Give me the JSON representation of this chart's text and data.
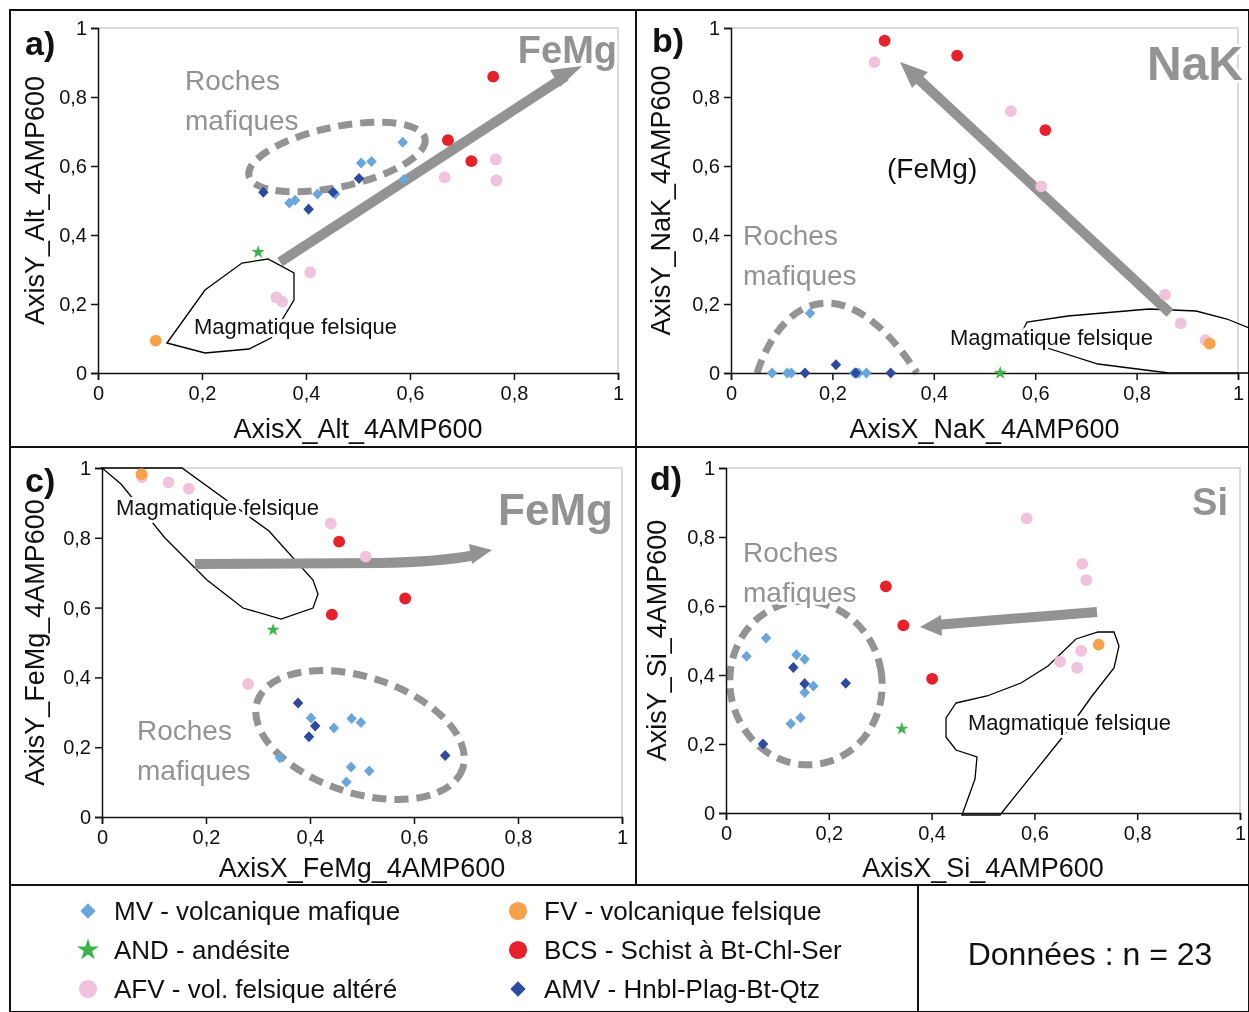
{
  "chart_data": [
    {
      "type": "scatter",
      "xlabel": "AxisX_Alt_4AMP600",
      "ylabel": "AxisY_Alt_4AMP600",
      "xlim": [
        0,
        1
      ],
      "ylim": [
        0,
        1
      ],
      "xticks": [
        {
          "value": 0,
          "label": "0"
        },
        {
          "value": 0.2,
          "label": "0,2"
        },
        {
          "value": 0.4,
          "label": "0,4"
        },
        {
          "value": 0.6,
          "label": "0,6"
        },
        {
          "value": 0.8,
          "label": "0,8"
        },
        {
          "value": 1,
          "label": "1"
        }
      ],
      "yticks": [
        {
          "value": 0,
          "label": "0"
        },
        {
          "value": 0.2,
          "label": "0,2"
        },
        {
          "value": 0.4,
          "label": "0,4"
        },
        {
          "value": 0.6,
          "label": "0,6"
        },
        {
          "value": 0.8,
          "label": "0,8"
        },
        {
          "value": 1,
          "label": "1"
        }
      ],
      "legend": "bottom",
      "annotations": [
        "a)",
        "FeMg",
        "Roches mafiques",
        "Magmatique felsique"
      ],
      "series": [
        {
          "name": "MV - volcanique mafique",
          "color": "#6aa6dc",
          "marker": "diamond",
          "x": [
            0.586,
            0.506,
            0.526,
            0.588,
            0.422,
            0.368,
            0.379,
            0.456
          ],
          "values": [
            0.669,
            0.609,
            0.613,
            0.561,
            0.519,
            0.493,
            0.501,
            0.519
          ]
        },
        {
          "name": "AND - andésite",
          "color": "#3cb44b",
          "marker": "star",
          "x": [
            0.308
          ],
          "values": [
            0.35
          ]
        },
        {
          "name": "AFV - vol. felsique altéré",
          "color": "#f0c2dc",
          "marker": "circle",
          "x": [
            0.765,
            0.766,
            0.667,
            0.408,
            0.343,
            0.354
          ],
          "values": [
            0.619,
            0.558,
            0.567,
            0.292,
            0.219,
            0.207
          ]
        },
        {
          "name": "FV - volcanique felsique",
          "color": "#f7a14a",
          "marker": "circle",
          "x": [
            0.111
          ],
          "values": [
            0.094
          ]
        },
        {
          "name": "BCS - Schist à Bt-Chl-Ser",
          "color": "#e8202a",
          "marker": "circle",
          "x": [
            0.76,
            0.673,
            0.718
          ],
          "values": [
            0.859,
            0.675,
            0.614
          ]
        },
        {
          "name": "AMV - Hnbl-Plag-Bt-Qtz",
          "color": "#2e4aa0",
          "marker": "diamond",
          "x": [
            0.318,
            0.405,
            0.452,
            0.502
          ],
          "values": [
            0.524,
            0.475,
            0.524,
            0.564
          ]
        }
      ]
    },
    {
      "type": "scatter",
      "xlabel": "AxisX_NaK_4AMP600",
      "ylabel": "AxisY_NaK_4AMP600",
      "xlim": [
        0,
        1
      ],
      "ylim": [
        0,
        1
      ],
      "xticks": [
        {
          "value": 0,
          "label": "0"
        },
        {
          "value": 0.2,
          "label": "0,2"
        },
        {
          "value": 0.4,
          "label": "0,4"
        },
        {
          "value": 0.6,
          "label": "0,6"
        },
        {
          "value": 0.8,
          "label": "0,8"
        },
        {
          "value": 1,
          "label": "1"
        }
      ],
      "yticks": [
        {
          "value": 0,
          "label": "0"
        },
        {
          "value": 0.2,
          "label": "0,2"
        },
        {
          "value": 0.4,
          "label": "0,4"
        },
        {
          "value": 0.6,
          "label": "0,6"
        },
        {
          "value": 0.8,
          "label": "0,8"
        },
        {
          "value": 1,
          "label": "1"
        }
      ],
      "annotations": [
        "b)",
        "NaK",
        "(FeMg)",
        "Roches mafiques",
        "Magmatique felsique"
      ],
      "series": [
        {
          "color": "#6aa6dc",
          "marker": "diamond",
          "x": [
            0.156,
            0.081,
            0.111,
            0.119,
            0.243,
            0.248,
            0.252,
            0.267
          ],
          "values": [
            0.173,
            0,
            0,
            0,
            0,
            0,
            0,
            0
          ]
        },
        {
          "color": "#3cb44b",
          "marker": "star",
          "x": [
            0.531
          ],
          "values": [
            0
          ]
        },
        {
          "color": "#f0c2dc",
          "marker": "circle",
          "x": [
            0.283,
            0.552,
            0.612,
            0.856,
            0.887,
            0.936
          ],
          "values": [
            0.901,
            0.759,
            0.541,
            0.227,
            0.144,
            0.095
          ]
        },
        {
          "color": "#f7a14a",
          "marker": "circle",
          "x": [
            0.944
          ],
          "values": [
            0.085
          ]
        },
        {
          "color": "#e8202a",
          "marker": "circle",
          "x": [
            0.303,
            0.446,
            0.62
          ],
          "values": [
            0.963,
            0.92,
            0.704
          ]
        },
        {
          "color": "#2e4aa0",
          "marker": "diamond",
          "x": [
            0.146,
            0.207,
            0.246,
            0.315
          ],
          "values": [
            0,
            0.024,
            0,
            0
          ]
        }
      ]
    },
    {
      "type": "scatter",
      "xlabel": "AxisX_FeMg_4AMP600",
      "ylabel": "AxisY_FeMg_4AMP600",
      "xlim": [
        0,
        1
      ],
      "ylim": [
        0,
        1
      ],
      "xticks": [
        {
          "value": 0,
          "label": "0"
        },
        {
          "value": 0.2,
          "label": "0,2"
        },
        {
          "value": 0.4,
          "label": "0,4"
        },
        {
          "value": 0.6,
          "label": "0,6"
        },
        {
          "value": 0.8,
          "label": "0,8"
        },
        {
          "value": 1,
          "label": "1"
        }
      ],
      "yticks": [
        {
          "value": 0,
          "label": "0"
        },
        {
          "value": 0.2,
          "label": "0,2"
        },
        {
          "value": 0.4,
          "label": "0,4"
        },
        {
          "value": 0.6,
          "label": "0,6"
        },
        {
          "value": 0.8,
          "label": "0,8"
        },
        {
          "value": 1,
          "label": "1"
        }
      ],
      "annotations": [
        "c)",
        "FeMg",
        "Magmatique felsique",
        "Roches mafiques"
      ],
      "series": [
        {
          "color": "#6aa6dc",
          "marker": "diamond",
          "x": [
            0.402,
            0.446,
            0.48,
            0.498,
            0.342,
            0.479,
            0.514,
            0.47
          ],
          "values": [
            0.284,
            0.255,
            0.282,
            0.271,
            0.17,
            0.143,
            0.132,
            0.1
          ]
        },
        {
          "color": "#3cb44b",
          "marker": "star",
          "x": [
            0.329
          ],
          "values": [
            0.536
          ]
        },
        {
          "color": "#f0c2dc",
          "marker": "circle",
          "x": [
            0.077,
            0.128,
            0.167,
            0.44,
            0.507,
            0.281
          ],
          "values": [
            0.974,
            0.959,
            0.941,
            0.841,
            0.746,
            0.381
          ]
        },
        {
          "color": "#f7a14a",
          "marker": "circle",
          "x": [
            0.076
          ],
          "values": [
            0.982
          ]
        },
        {
          "color": "#e8202a",
          "marker": "circle",
          "x": [
            0.456,
            0.442,
            0.583
          ],
          "values": [
            0.789,
            0.58,
            0.626
          ]
        },
        {
          "color": "#2e4aa0",
          "marker": "diamond",
          "x": [
            0.377,
            0.41,
            0.398,
            0.66
          ],
          "values": [
            0.327,
            0.261,
            0.23,
            0.176
          ]
        }
      ]
    },
    {
      "type": "scatter",
      "xlabel": "AxisX_Si_4AMP600",
      "ylabel": "AxisY_Si_4AMP600",
      "xlim": [
        0,
        1
      ],
      "ylim": [
        0,
        1
      ],
      "xticks": [
        {
          "value": 0,
          "label": "0"
        },
        {
          "value": 0.2,
          "label": "0,2"
        },
        {
          "value": 0.4,
          "label": "0,4"
        },
        {
          "value": 0.6,
          "label": "0,6"
        },
        {
          "value": 0.8,
          "label": "0,8"
        },
        {
          "value": 1,
          "label": "1"
        }
      ],
      "yticks": [
        {
          "value": 0,
          "label": "0"
        },
        {
          "value": 0.2,
          "label": "0,2"
        },
        {
          "value": 0.4,
          "label": "0,4"
        },
        {
          "value": 0.6,
          "label": "0,6"
        },
        {
          "value": 0.8,
          "label": "0,8"
        },
        {
          "value": 1,
          "label": "1"
        }
      ],
      "annotations": [
        "d)",
        "Si",
        "Roches mafiques",
        "Magmatique felsique",
        "Données : n = 23"
      ],
      "series": [
        {
          "color": "#6aa6dc",
          "marker": "diamond",
          "x": [
            0.078,
            0.04,
            0.137,
            0.153,
            0.17,
            0.153,
            0.145,
            0.126
          ],
          "values": [
            0.507,
            0.454,
            0.459,
            0.446,
            0.368,
            0.349,
            0.276,
            0.259
          ]
        },
        {
          "color": "#3cb44b",
          "marker": "star",
          "x": [
            0.342
          ],
          "values": [
            0.244
          ]
        },
        {
          "color": "#f0c2dc",
          "marker": "circle",
          "x": [
            0.585,
            0.693,
            0.701,
            0.691,
            0.65,
            0.683
          ],
          "values": [
            0.854,
            0.722,
            0.675,
            0.47,
            0.439,
            0.421
          ]
        },
        {
          "color": "#f7a14a",
          "marker": "circle",
          "x": [
            0.725
          ],
          "values": [
            0.488
          ]
        },
        {
          "color": "#e8202a",
          "marker": "circle",
          "x": [
            0.311,
            0.345,
            0.401
          ],
          "values": [
            0.657,
            0.544,
            0.389
          ]
        },
        {
          "color": "#2e4aa0",
          "marker": "diamond",
          "x": [
            0.131,
            0.153,
            0.233,
            0.072
          ],
          "values": [
            0.422,
            0.375,
            0.376,
            0.2
          ]
        }
      ]
    }
  ]
}
